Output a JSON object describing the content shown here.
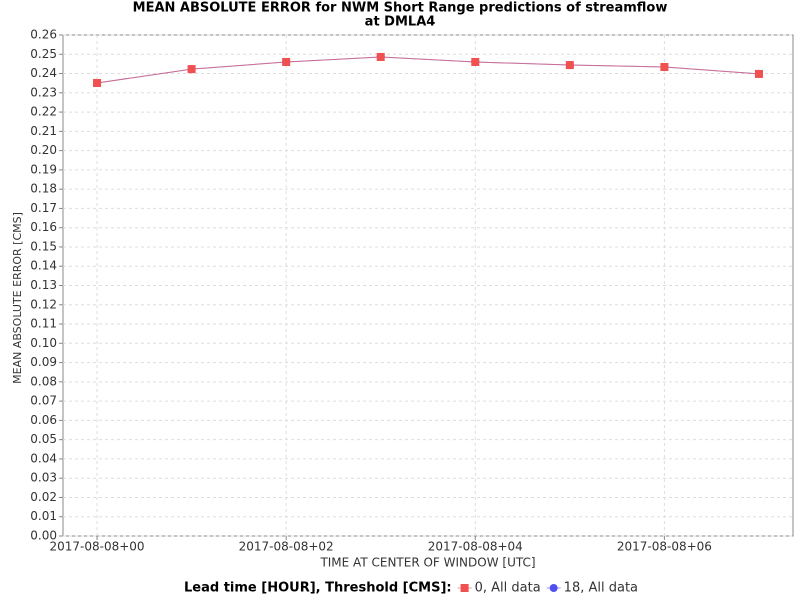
{
  "chart_data": {
    "type": "line",
    "title": [
      "MEAN ABSOLUTE ERROR for NWM Short Range predictions of streamflow",
      "at DMLA4"
    ],
    "xlabel": "TIME AT CENTER OF WINDOW [UTC]",
    "ylabel": "MEAN ABSOLUTE ERROR [CMS]",
    "legend_title": "Lead time [HOUR], Threshold [CMS]:",
    "x": [
      0,
      1,
      2,
      3,
      4,
      5,
      6,
      7
    ],
    "series": [
      {
        "name": "0, All data",
        "color": "#f05050",
        "marker": "square",
        "values": [
          0.2351,
          0.2423,
          0.246,
          0.2486,
          0.246,
          0.2444,
          0.2434,
          0.2398
        ]
      },
      {
        "name": "18, All data",
        "color": "#5050f0",
        "marker": "circle",
        "values": [
          0.2351,
          0.2423,
          0.246,
          0.2486,
          0.246,
          0.2444,
          0.2434,
          0.2398
        ]
      }
    ],
    "xlim": [
      -0.36,
      7.36
    ],
    "xticks": [
      {
        "value": 0,
        "label": "2017-08-08+00"
      },
      {
        "value": 2,
        "label": "2017-08-08+02"
      },
      {
        "value": 4,
        "label": "2017-08-08+04"
      },
      {
        "value": 6,
        "label": "2017-08-08+06"
      }
    ],
    "ylim": [
      0,
      0.26
    ],
    "yticks": [
      {
        "value": 0,
        "label": "0.00"
      },
      {
        "value": 0.01,
        "label": "0.01"
      },
      {
        "value": 0.02,
        "label": "0.02"
      },
      {
        "value": 0.03,
        "label": "0.03"
      },
      {
        "value": 0.04,
        "label": "0.04"
      },
      {
        "value": 0.05,
        "label": "0.05"
      },
      {
        "value": 0.06,
        "label": "0.06"
      },
      {
        "value": 0.07,
        "label": "0.07"
      },
      {
        "value": 0.08,
        "label": "0.08"
      },
      {
        "value": 0.09,
        "label": "0.09"
      },
      {
        "value": 0.1,
        "label": "0.10"
      },
      {
        "value": 0.11,
        "label": "0.11"
      },
      {
        "value": 0.12,
        "label": "0.12"
      },
      {
        "value": 0.13,
        "label": "0.13"
      },
      {
        "value": 0.14,
        "label": "0.14"
      },
      {
        "value": 0.15,
        "label": "0.15"
      },
      {
        "value": 0.16,
        "label": "0.16"
      },
      {
        "value": 0.17,
        "label": "0.17"
      },
      {
        "value": 0.18,
        "label": "0.18"
      },
      {
        "value": 0.19,
        "label": "0.19"
      },
      {
        "value": 0.2,
        "label": "0.20"
      },
      {
        "value": 0.21,
        "label": "0.21"
      },
      {
        "value": 0.22,
        "label": "0.22"
      },
      {
        "value": 0.23,
        "label": "0.23"
      },
      {
        "value": 0.24,
        "label": "0.24"
      },
      {
        "value": 0.25,
        "label": "0.25"
      },
      {
        "value": 0.26,
        "label": "0.26"
      }
    ],
    "grid": true
  }
}
